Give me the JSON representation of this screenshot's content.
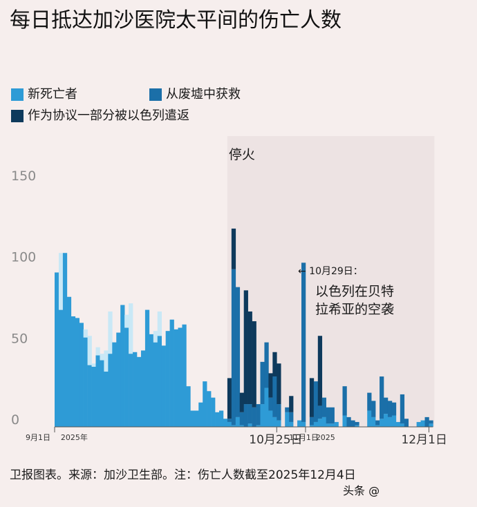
{
  "title": "每日抵达加沙医院太平间的伤亡人数",
  "footer": "卫报图表。来源：加沙卫生部。注：伤亡人数截至2025年12月4日",
  "watermark": "头条 @",
  "colors": {
    "new_deaths": "#2e9bd6",
    "rubble": "#1b6fa8",
    "returned": "#0e3a5c",
    "light": "#c9e8f6",
    "shade": "#ede3e3"
  },
  "chart_data": {
    "type": "bar",
    "stacked": true,
    "title": "每日抵达加沙医院太平间的伤亡人数",
    "ylim": [
      0,
      160
    ],
    "yticks": [
      0,
      50,
      100,
      150
    ],
    "legend": [
      "新死亡者",
      "从废墟中获救",
      "作为协议一部分被以色列遣返"
    ],
    "legend_position": "top-left",
    "shaded_region": {
      "label": "停火",
      "start": "10月10日",
      "end": "12月4日"
    },
    "x_tick_labels": [
      {
        "label": "9月1日",
        "day": 0
      },
      {
        "label": "2025年",
        "day": 1.5
      },
      {
        "label": "10月25日",
        "day": 54
      },
      {
        "label": "11月1日",
        "day": 61
      },
      {
        "label": "2025",
        "day": 63.5
      },
      {
        "label": "12月1日",
        "day": 91
      }
    ],
    "annotation": {
      "arrow_text": "← 10月29日：",
      "text_lines": [
        "以色列在贝特",
        "拉希亚的空袭"
      ]
    },
    "series": [
      {
        "name": "新死亡者",
        "values": [
          95,
          72,
          107,
          80,
          68,
          67,
          64,
          55,
          38,
          37,
          44,
          41,
          34,
          45,
          52,
          58,
          75,
          61,
          45,
          46,
          43,
          47,
          72,
          57,
          52,
          56,
          50,
          59,
          66,
          60,
          61,
          63,
          25,
          10,
          10,
          15,
          28,
          22,
          18,
          9,
          10,
          5,
          3,
          1,
          6,
          1,
          0,
          2,
          0,
          1,
          14,
          24,
          10,
          6,
          4,
          0,
          9,
          3,
          0,
          4,
          3,
          0,
          1,
          3,
          5,
          6,
          2,
          2,
          3,
          0,
          7,
          0,
          0,
          1,
          0,
          0,
          10,
          6,
          1,
          5,
          8,
          6,
          7,
          3,
          2,
          0,
          0,
          0,
          3,
          4,
          0,
          2
        ]
      },
      {
        "name": "从废墟中获救",
        "values": [
          0,
          0,
          0,
          0,
          0,
          0,
          0,
          0,
          0,
          0,
          0,
          0,
          0,
          0,
          0,
          0,
          0,
          0,
          0,
          0,
          0,
          0,
          0,
          0,
          0,
          0,
          0,
          0,
          0,
          0,
          0,
          0,
          0,
          0,
          0,
          0,
          0,
          0,
          0,
          0,
          0,
          0,
          2,
          96,
          80,
          8,
          14,
          12,
          12,
          13,
          26,
          28,
          8,
          25,
          10,
          0,
          3,
          6,
          0,
          0,
          98,
          0,
          5,
          25,
          8,
          12,
          10,
          10,
          0,
          0,
          18,
          6,
          4,
          2,
          0,
          0,
          11,
          10,
          3,
          26,
          10,
          10,
          8,
          0,
          18,
          5,
          0,
          0,
          0,
          0,
          6,
          2
        ]
      },
      {
        "name": "作为协议一部分被以色列遣返",
        "values": [
          0,
          0,
          0,
          0,
          0,
          0,
          0,
          0,
          0,
          0,
          0,
          0,
          0,
          0,
          0,
          0,
          0,
          0,
          0,
          0,
          0,
          0,
          0,
          0,
          0,
          0,
          0,
          0,
          0,
          0,
          0,
          0,
          0,
          0,
          0,
          0,
          0,
          0,
          0,
          0,
          0,
          0,
          25,
          25,
          0,
          12,
          70,
          57,
          53,
          0,
          0,
          0,
          15,
          15,
          25,
          0,
          0,
          10,
          0,
          0,
          0,
          0,
          24,
          0,
          43,
          0,
          0,
          0,
          0,
          0,
          0,
          0,
          0,
          0,
          0,
          0,
          0,
          0,
          0,
          0,
          0,
          0,
          0,
          0,
          0,
          0,
          0,
          0,
          0,
          0,
          0,
          0
        ]
      },
      {
        "name": "",
        "values": [
          0,
          35,
          0,
          0,
          0,
          0,
          0,
          5,
          18,
          2,
          5,
          4,
          13,
          26,
          0,
          0,
          0,
          8,
          31,
          0,
          0,
          0,
          0,
          0,
          7,
          15,
          0,
          0,
          0,
          0,
          0,
          0,
          0,
          0,
          0,
          0,
          0,
          0,
          0,
          0,
          0,
          0,
          0,
          0,
          0,
          0,
          0,
          0,
          0,
          0,
          0,
          0,
          0,
          0,
          0,
          0,
          0,
          0,
          0,
          0,
          0,
          0,
          0,
          0,
          0,
          0,
          0,
          0,
          0,
          0,
          0,
          0,
          0,
          0,
          0,
          0,
          0,
          0,
          0,
          0,
          0,
          0,
          0,
          0,
          0,
          0,
          0,
          0,
          0,
          0,
          0,
          0
        ]
      }
    ]
  }
}
